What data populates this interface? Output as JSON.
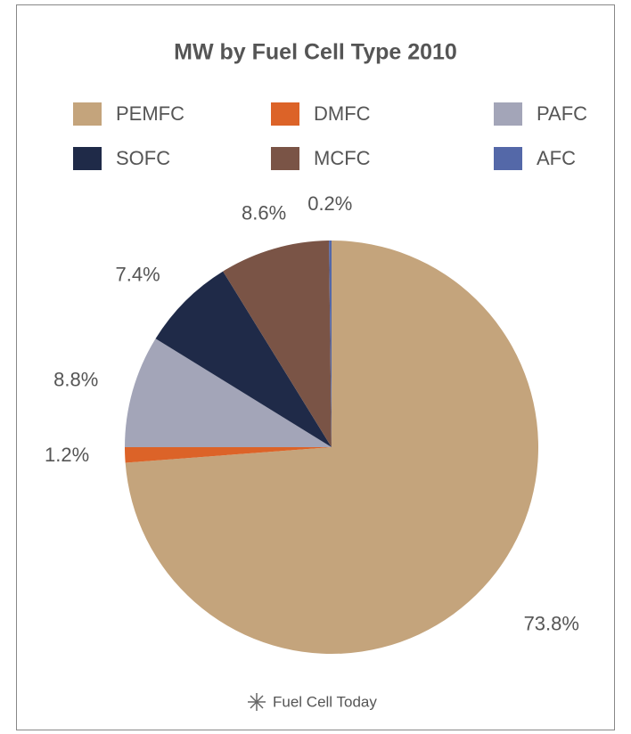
{
  "chart_data": {
    "type": "pie",
    "title": "MW by Fuel Cell Type 2010",
    "categories": [
      "PEMFC",
      "DMFC",
      "PAFC",
      "SOFC",
      "MCFC",
      "AFC"
    ],
    "values": [
      73.8,
      1.2,
      8.8,
      7.4,
      8.6,
      0.2
    ],
    "value_labels": [
      "73.8%",
      "1.2%",
      "8.8%",
      "7.4%",
      "8.6%",
      "0.2%"
    ],
    "colors": [
      "#c4a47c",
      "#dc6328",
      "#a3a5b8",
      "#1f2a48",
      "#7a5446",
      "#5468a8"
    ],
    "source": "Fuel Cell Today"
  }
}
